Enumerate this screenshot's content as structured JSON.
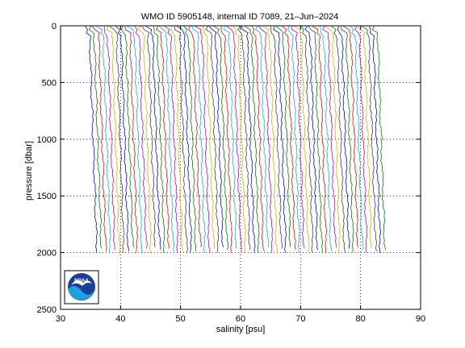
{
  "chart_data": {
    "type": "line",
    "title": "WMO ID 5905148, internal ID 7089, 21–Jun–2024",
    "xlabel": "salinity [psu]",
    "ylabel": "pressure [dbar]",
    "xlim": [
      30,
      90
    ],
    "ylim": [
      0,
      2500
    ],
    "y_reversed": true,
    "grid": true,
    "grid_style": "dotted",
    "x_ticks": [
      30,
      40,
      50,
      60,
      70,
      80,
      90
    ],
    "y_ticks": [
      0,
      500,
      1000,
      1500,
      2000,
      2500
    ],
    "profiles": {
      "count": 65,
      "first_surface_salinity": 34.3,
      "step": 0.75,
      "surface_pressure": 5,
      "bottom_pressure": 2000,
      "deep_shift": 1.2,
      "palette": [
        "#0000ff",
        "#008000",
        "#ff0000",
        "#00bfbf",
        "#bf00bf",
        "#bfbf00",
        "#404040"
      ]
    },
    "logo": {
      "text": "NOAA",
      "primary_color": "#1a3f95",
      "secondary_color": "#1fa0e0"
    }
  }
}
